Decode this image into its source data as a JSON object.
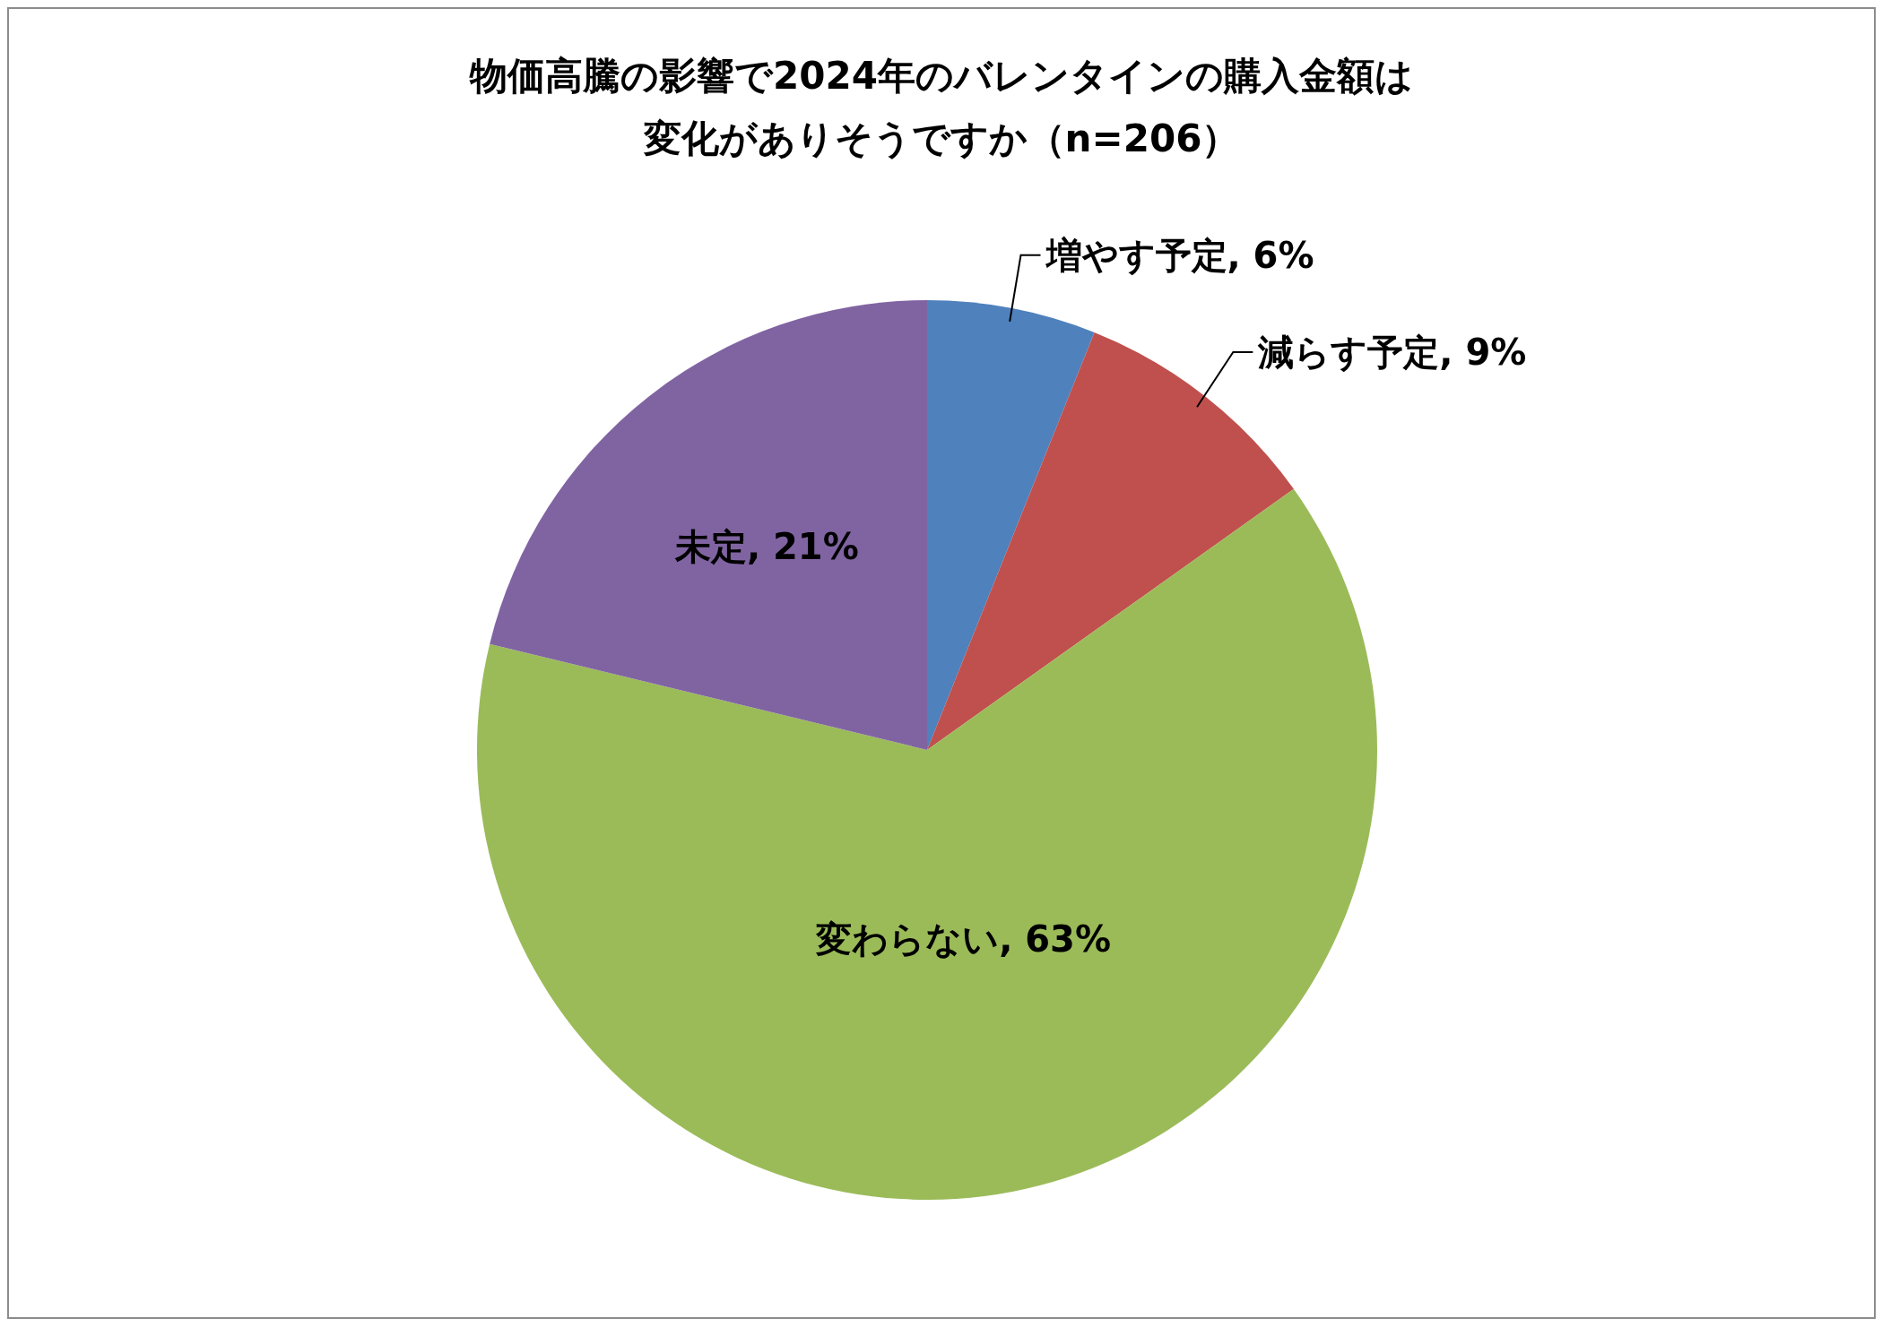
{
  "chart_data": {
    "type": "pie",
    "title": "物価高騰の影響で2024年のバレンタインの購入金額は変化がありそうですか（n=206）",
    "categories": [
      "増やす予定",
      "減らす予定",
      "変わらない",
      "未定"
    ],
    "values": [
      6,
      9,
      63,
      21
    ],
    "colors": [
      "#4f81bd",
      "#c0504d",
      "#9bbb59",
      "#8064a2"
    ],
    "value_labels": [
      "6%",
      "9%",
      "63%",
      "21%"
    ],
    "legend": false
  }
}
